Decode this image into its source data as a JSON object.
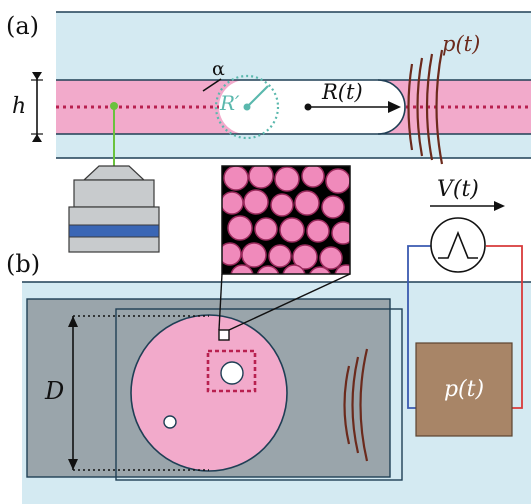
{
  "panels": {
    "a_label": "(a)",
    "b_label": "(b)"
  },
  "labels": {
    "h": "h",
    "alpha": "α",
    "r_prime": "R′",
    "r_t": "R(t)",
    "p_t_top": "p(t)",
    "v_t": "V(t)",
    "d": "D",
    "p_t_box": "p(t)"
  },
  "colors": {
    "channel_bg": "#d4eaf2",
    "pink_fluid": "#f2aacb",
    "dotted_line": "#b8204f",
    "teal": "#5ab8ad",
    "green": "#6ac23e",
    "brown_wave": "#6b2a1c",
    "brown_box": "#a88567",
    "gray_plate": "#9aa5ab",
    "dark_line": "#1f3f55",
    "wire_blue": "#3a5ab0",
    "wire_red": "#d83a3a",
    "objective_blue": "#3a66b5"
  }
}
